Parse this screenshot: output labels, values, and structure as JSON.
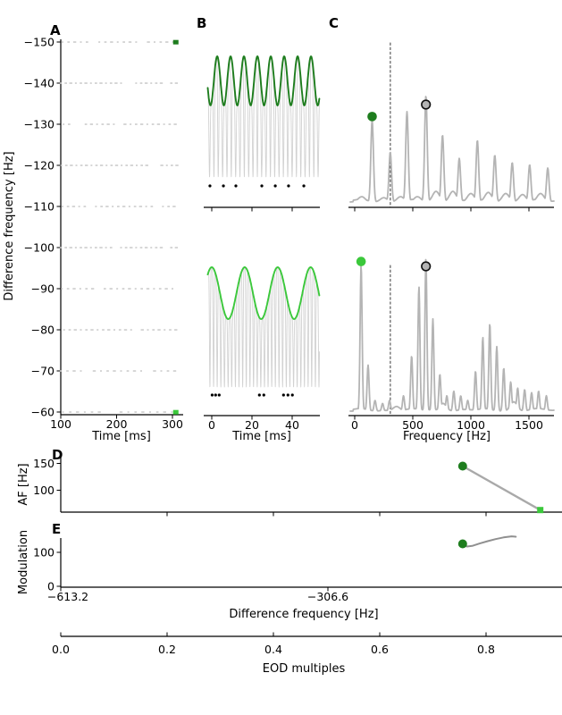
{
  "colors": {
    "dark_green": "#1e7d1e",
    "light_green": "#3bc83b",
    "spectrum_gray": "#b4b4b4",
    "carrier_gray": "#d2d2d2",
    "raster_gray": "#c9c9c9",
    "line_gray": "#a9a9a9",
    "mod_line_gray": "#909090",
    "circle_marker_fill": "#b4b4b4",
    "axis_black": "#000000"
  },
  "panel_labels": {
    "A": "A",
    "B": "B",
    "C": "C",
    "D": "D",
    "E": "E"
  },
  "axis_labels": {
    "a_x": "Time [ms]",
    "a_y": "Difference frequency [Hz]",
    "b_x": "Time [ms]",
    "c_x": "Frequency [Hz]",
    "d_y": "AF [Hz]",
    "e_y": "Modulation",
    "e_x": "Difference frequency [Hz]",
    "eod_x": "EOD multiples"
  },
  "chart_data": [
    {
      "id": "A",
      "type": "raster",
      "xlabel": "Time [ms]",
      "ylabel": "Difference frequency [Hz]",
      "xlim": [
        100,
        320
      ],
      "xticks": [
        100,
        200,
        300
      ],
      "xticklabels": [
        "100",
        "200",
        "300"
      ],
      "yticks": [
        -150,
        -140,
        -130,
        -120,
        -110,
        -100,
        -90,
        -80,
        -70,
        -60
      ],
      "yticklabels": [
        "−150",
        "−140",
        "−130",
        "−120",
        "−110",
        "−100",
        "−90",
        "−80",
        "−70",
        "−60"
      ],
      "rows": [
        {
          "df": -150,
          "period_ms": 11,
          "phase_ms": 3,
          "gaps": [
            [
              148,
              163
            ],
            [
              238,
              252
            ]
          ]
        },
        {
          "df": -140,
          "period_ms": 9,
          "phase_ms": 0,
          "gaps": [
            [
              212,
              226
            ],
            [
              283,
              291
            ]
          ]
        },
        {
          "df": -130,
          "period_ms": 10,
          "phase_ms": 5,
          "gaps": [
            [
              122,
              140
            ],
            [
              202,
              212
            ]
          ]
        },
        {
          "df": -120,
          "period_ms": 9,
          "phase_ms": 1,
          "gaps": [
            [
              262,
              274
            ]
          ]
        },
        {
          "df": -110,
          "period_ms": 10,
          "phase_ms": 3,
          "gaps": [
            [
              152,
              161
            ],
            [
              272,
              280
            ]
          ]
        },
        {
          "df": -100,
          "period_ms": 9,
          "phase_ms": 0,
          "gaps": [
            [
              192,
              202
            ],
            [
              281,
              289
            ]
          ]
        },
        {
          "df": -90,
          "period_ms": 11,
          "phase_ms": 2,
          "gaps": [
            [
              162,
              174
            ]
          ]
        },
        {
          "df": -80,
          "period_ms": 10,
          "phase_ms": 6,
          "gaps": [
            [
              232,
              244
            ]
          ]
        },
        {
          "df": -70,
          "period_ms": 12,
          "phase_ms": 0,
          "gaps": [
            [
              142,
              152
            ],
            [
              252,
              262
            ]
          ]
        },
        {
          "df": -60,
          "period_ms": 13,
          "phase_ms": 4,
          "gaps": [
            [
              182,
              196
            ]
          ]
        }
      ],
      "markers": [
        {
          "df": -150,
          "t_ms": 306,
          "color": "dark_green"
        },
        {
          "df": -60,
          "t_ms": 306,
          "color": "light_green"
        }
      ]
    },
    {
      "id": "B1",
      "type": "beat_waveform",
      "xlim": [
        0,
        53
      ],
      "xticks": [
        0,
        20,
        40
      ],
      "show_xticklabels": false,
      "carrier_hz": 463,
      "am_hz": 150,
      "env_color": "dark_green",
      "spike_times_ms": [
        -0.9,
        5.8,
        12.0,
        24.9,
        31.6,
        38.2,
        45.8
      ]
    },
    {
      "id": "B2",
      "type": "beat_waveform",
      "xlabel": "Time [ms]",
      "xlim": [
        0,
        53
      ],
      "xticks": [
        0,
        20,
        40
      ],
      "xticklabels": [
        "0",
        "20",
        "40"
      ],
      "show_xticklabels": true,
      "carrier_hz": 553,
      "am_hz": 61,
      "env_color": "light_green",
      "spike_times_ms": [
        0.2,
        1.9,
        3.7,
        23.7,
        25.9,
        35.7,
        37.9,
        40.1
      ]
    },
    {
      "id": "C1",
      "type": "spectrum",
      "xlim": [
        -55,
        1715
      ],
      "xticks": [
        0,
        500,
        1000,
        1500
      ],
      "show_xticklabels": false,
      "dashed_line_hz": 306.6,
      "peaks": [
        [
          150,
          0.77
        ],
        [
          306,
          0.47
        ],
        [
          450,
          0.85
        ],
        [
          613,
          1.0
        ],
        [
          756,
          0.63
        ],
        [
          900,
          0.41
        ],
        [
          1056,
          0.58
        ],
        [
          1206,
          0.44
        ],
        [
          1356,
          0.37
        ],
        [
          1506,
          0.35
        ],
        [
          1662,
          0.32
        ]
      ],
      "shoulders": [
        [
          60,
          0.05
        ],
        [
          250,
          0.04
        ],
        [
          395,
          0.05
        ],
        [
          540,
          0.05
        ],
        [
          700,
          0.1
        ],
        [
          845,
          0.1
        ],
        [
          1000,
          0.08
        ],
        [
          1150,
          0.09
        ],
        [
          1300,
          0.08
        ],
        [
          1445,
          0.07
        ],
        [
          1600,
          0.08
        ]
      ],
      "dot_hz": 150,
      "dot_color": "dark_green",
      "circle_hz": 613
    },
    {
      "id": "C2",
      "type": "spectrum",
      "xlabel": "Frequency [Hz]",
      "xlim": [
        -55,
        1715
      ],
      "xticks": [
        0,
        500,
        1000,
        1500
      ],
      "xticklabels": [
        "0",
        "500",
        "1000",
        "1500"
      ],
      "show_xticklabels": true,
      "dashed_line_hz": 306.6,
      "peaks": [
        [
          55,
          0.95
        ],
        [
          115,
          0.3
        ],
        [
          175,
          0.07
        ],
        [
          240,
          0.05
        ],
        [
          300,
          0.07
        ],
        [
          420,
          0.1
        ],
        [
          490,
          0.36
        ],
        [
          553,
          0.81
        ],
        [
          613,
          1.0
        ],
        [
          673,
          0.6
        ],
        [
          733,
          0.24
        ],
        [
          793,
          0.1
        ],
        [
          853,
          0.13
        ],
        [
          913,
          0.1
        ],
        [
          973,
          0.07
        ],
        [
          1040,
          0.26
        ],
        [
          1103,
          0.48
        ],
        [
          1163,
          0.57
        ],
        [
          1223,
          0.42
        ],
        [
          1283,
          0.28
        ],
        [
          1343,
          0.19
        ],
        [
          1403,
          0.15
        ],
        [
          1463,
          0.14
        ],
        [
          1523,
          0.12
        ],
        [
          1583,
          0.13
        ],
        [
          1650,
          0.1
        ]
      ],
      "shoulders": [
        [
          360,
          0.03
        ],
        [
          760,
          0.05
        ],
        [
          1370,
          0.06
        ]
      ],
      "dot_hz": 55,
      "dot_color": "light_green",
      "circle_hz": 613
    },
    {
      "id": "D",
      "type": "line",
      "ylabel": "AF [Hz]",
      "yticks": [
        150,
        100
      ],
      "yticklabels": [
        "150",
        "100"
      ],
      "xticks_eod": [
        0.2,
        0.4,
        0.6,
        0.8
      ],
      "points": [
        {
          "eod": 0.756,
          "af_hz": 145
        },
        {
          "eod": 0.902,
          "af_hz": 63
        }
      ],
      "start_marker_color": "dark_green",
      "end_marker_color": "light_green"
    },
    {
      "id": "E",
      "type": "line",
      "ylabel": "Modulation",
      "xlabel": "Difference frequency [Hz]",
      "yticks": [
        100,
        0
      ],
      "yticklabels": [
        "100",
        "0"
      ],
      "xticks_hz": [
        -613.2,
        -306.6
      ],
      "xticklabels": [
        "−613.2",
        "−306.6"
      ],
      "curve": [
        [
          0.756,
          125
        ],
        [
          0.764,
          117
        ],
        [
          0.774,
          119
        ],
        [
          0.788,
          126
        ],
        [
          0.803,
          133
        ],
        [
          0.818,
          139
        ],
        [
          0.833,
          144
        ],
        [
          0.848,
          147
        ],
        [
          0.856,
          146
        ]
      ],
      "start_marker_color": "dark_green"
    },
    {
      "id": "EOD",
      "type": "axis",
      "xlabel": "EOD multiples",
      "xticks": [
        0.0,
        0.2,
        0.4,
        0.6,
        0.8
      ],
      "xticklabels": [
        "0.0",
        "0.2",
        "0.4",
        "0.6",
        "0.8"
      ]
    }
  ]
}
